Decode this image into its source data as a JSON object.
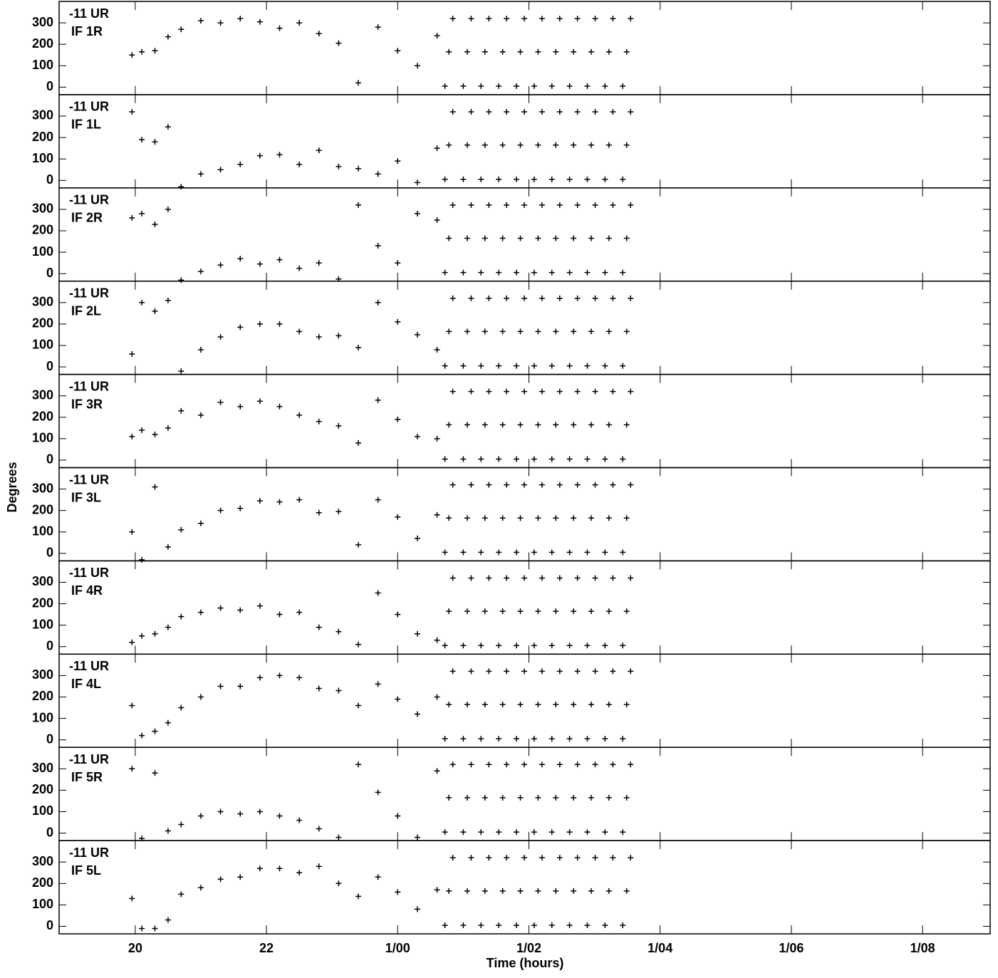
{
  "chart_data": {
    "type": "scatter",
    "source": "-11 UR",
    "xlabel": "Time (hours)",
    "ylabel": "Degrees",
    "xlim": [
      18.84,
      33.03
    ],
    "ylim": [
      -35,
      400
    ],
    "xticks": [
      20,
      22,
      {
        "value": 24,
        "label": "1/00"
      },
      {
        "value": 26,
        "label": "1/02"
      },
      {
        "value": 28,
        "label": "1/04"
      },
      {
        "value": 30,
        "label": "1/06"
      },
      {
        "value": 32,
        "label": "1/08"
      }
    ],
    "yticks": [
      0,
      100,
      200,
      300
    ],
    "x": [
      19.95,
      20.1,
      20.3,
      20.5,
      20.7,
      21.0,
      21.3,
      21.6,
      21.9,
      22.2,
      22.5,
      22.8,
      23.1,
      23.4,
      23.7,
      24.0,
      24.3,
      24.6,
      24.72,
      24.78,
      24.84,
      25.0,
      25.06,
      25.12,
      25.27,
      25.33,
      25.39,
      25.54,
      25.6,
      25.66,
      25.81,
      25.87,
      25.93,
      26.08,
      26.14,
      26.2,
      26.35,
      26.41,
      26.47,
      26.62,
      26.68,
      26.74,
      26.89,
      26.95,
      27.01,
      27.16,
      27.22,
      27.28,
      27.43,
      27.49,
      27.55
    ],
    "series": [
      {
        "name": "IF 1R",
        "color": "#000000",
        "values": [
          150,
          165,
          170,
          235,
          270,
          310,
          300,
          320,
          305,
          275,
          300,
          250,
          205,
          20,
          280,
          170,
          100,
          240,
          5,
          165,
          320,
          5,
          165,
          320,
          5,
          165,
          320,
          5,
          165,
          320,
          5,
          165,
          320,
          5,
          165,
          320,
          5,
          165,
          320,
          5,
          165,
          320,
          5,
          165,
          320,
          5,
          165,
          320,
          5,
          165,
          320
        ]
      },
      {
        "name": "IF 1L",
        "color": "#000000",
        "values": [
          320,
          190,
          180,
          250,
          -30,
          30,
          50,
          75,
          115,
          120,
          75,
          140,
          65,
          55,
          30,
          90,
          -10,
          150,
          5,
          165,
          320,
          5,
          165,
          320,
          5,
          165,
          320,
          5,
          165,
          320,
          5,
          165,
          320,
          5,
          165,
          320,
          5,
          165,
          320,
          5,
          165,
          320,
          5,
          165,
          320,
          5,
          165,
          320,
          5,
          165,
          320
        ]
      },
      {
        "name": "IF 2R",
        "color": "#000000",
        "values": [
          260,
          280,
          230,
          300,
          -30,
          10,
          40,
          70,
          45,
          65,
          25,
          50,
          -25,
          320,
          130,
          50,
          280,
          250,
          5,
          165,
          320,
          5,
          165,
          320,
          5,
          165,
          320,
          5,
          165,
          320,
          5,
          165,
          320,
          5,
          165,
          320,
          5,
          165,
          320,
          5,
          165,
          320,
          5,
          165,
          320,
          5,
          165,
          320,
          5,
          165,
          320
        ]
      },
      {
        "name": "IF 2L",
        "color": "#000000",
        "values": [
          60,
          300,
          260,
          310,
          -20,
          80,
          140,
          185,
          200,
          200,
          165,
          140,
          145,
          90,
          300,
          210,
          150,
          80,
          5,
          165,
          320,
          5,
          165,
          320,
          5,
          165,
          320,
          5,
          165,
          320,
          5,
          165,
          320,
          5,
          165,
          320,
          5,
          165,
          320,
          5,
          165,
          320,
          5,
          165,
          320,
          5,
          165,
          320,
          5,
          165,
          320
        ]
      },
      {
        "name": "IF 3R",
        "color": "#000000",
        "values": [
          110,
          140,
          120,
          150,
          230,
          210,
          270,
          250,
          275,
          250,
          210,
          180,
          160,
          80,
          280,
          190,
          110,
          100,
          5,
          165,
          320,
          5,
          165,
          320,
          5,
          165,
          320,
          5,
          165,
          320,
          5,
          165,
          320,
          5,
          165,
          320,
          5,
          165,
          320,
          5,
          165,
          320,
          5,
          165,
          320,
          5,
          165,
          320,
          5,
          165,
          320
        ]
      },
      {
        "name": "IF 3L",
        "color": "#000000",
        "values": [
          100,
          -30,
          310,
          30,
          110,
          140,
          200,
          210,
          245,
          240,
          250,
          190,
          195,
          40,
          250,
          170,
          70,
          180,
          5,
          165,
          320,
          5,
          165,
          320,
          5,
          165,
          320,
          5,
          165,
          320,
          5,
          165,
          320,
          5,
          165,
          320,
          5,
          165,
          320,
          5,
          165,
          320,
          5,
          165,
          320,
          5,
          165,
          320,
          5,
          165,
          320
        ]
      },
      {
        "name": "IF 4R",
        "color": "#000000",
        "values": [
          20,
          50,
          60,
          90,
          140,
          160,
          180,
          170,
          190,
          150,
          160,
          90,
          70,
          10,
          250,
          150,
          60,
          30,
          5,
          165,
          320,
          5,
          165,
          320,
          5,
          165,
          320,
          5,
          165,
          320,
          5,
          165,
          320,
          5,
          165,
          320,
          5,
          165,
          320,
          5,
          165,
          320,
          5,
          165,
          320,
          5,
          165,
          320,
          5,
          165,
          320
        ]
      },
      {
        "name": "IF 4L",
        "color": "#000000",
        "values": [
          160,
          20,
          40,
          80,
          150,
          200,
          250,
          250,
          290,
          300,
          290,
          240,
          230,
          160,
          260,
          190,
          120,
          200,
          5,
          165,
          320,
          5,
          165,
          320,
          5,
          165,
          320,
          5,
          165,
          320,
          5,
          165,
          320,
          5,
          165,
          320,
          5,
          165,
          320,
          5,
          165,
          320,
          5,
          165,
          320,
          5,
          165,
          320,
          5,
          165,
          320
        ]
      },
      {
        "name": "IF 5R",
        "color": "#000000",
        "values": [
          300,
          -25,
          280,
          10,
          40,
          80,
          100,
          90,
          100,
          80,
          60,
          20,
          -20,
          320,
          190,
          80,
          -20,
          290,
          5,
          165,
          320,
          5,
          165,
          320,
          5,
          165,
          320,
          5,
          165,
          320,
          5,
          165,
          320,
          5,
          165,
          320,
          5,
          165,
          320,
          5,
          165,
          320,
          5,
          165,
          320,
          5,
          165,
          320,
          5,
          165,
          320
        ]
      },
      {
        "name": "IF 5L",
        "color": "#000000",
        "values": [
          130,
          -10,
          -10,
          30,
          150,
          180,
          220,
          230,
          270,
          270,
          250,
          280,
          200,
          140,
          230,
          160,
          80,
          170,
          5,
          165,
          320,
          5,
          165,
          320,
          5,
          165,
          320,
          5,
          165,
          320,
          5,
          165,
          320,
          5,
          165,
          320,
          5,
          165,
          320,
          5,
          165,
          320,
          5,
          165,
          320,
          5,
          165,
          320,
          5,
          165,
          320
        ]
      }
    ]
  }
}
